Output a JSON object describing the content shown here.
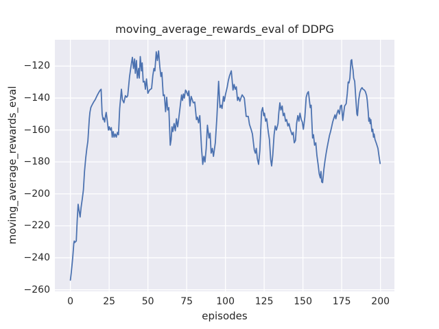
{
  "chart_data": {
    "type": "line",
    "title": "moving_average_rewards_eval of DDPG",
    "xlabel": "episodes",
    "ylabel": "moving_average_rewards_eval",
    "xlim": [
      -10,
      209
    ],
    "ylim": [
      -261,
      -103.5
    ],
    "xticks": [
      0,
      25,
      50,
      75,
      100,
      125,
      150,
      175,
      200
    ],
    "yticks": [
      -260,
      -240,
      -220,
      -200,
      -180,
      -160,
      -140,
      -120
    ],
    "grid": true,
    "legend": "none",
    "plot_bg_color": "#eaeaf2",
    "grid_color": "#ffffff",
    "text_color": "#262626",
    "series": [
      {
        "name": "moving_average_rewards_eval",
        "color": "#4c72b0",
        "points": [
          [
            0,
            -254
          ],
          [
            0.5,
            -250
          ],
          [
            1,
            -245
          ],
          [
            1.5,
            -240
          ],
          [
            2,
            -234
          ],
          [
            2.2,
            -231
          ],
          [
            2.5,
            -229.5
          ],
          [
            2.8,
            -230.5
          ],
          [
            3.8,
            -229.5
          ],
          [
            4.4,
            -217
          ],
          [
            5,
            -206.5
          ],
          [
            5.7,
            -211
          ],
          [
            6.3,
            -214.5
          ],
          [
            6.9,
            -208.5
          ],
          [
            7.7,
            -203
          ],
          [
            8.4,
            -197.5
          ],
          [
            9.1,
            -186
          ],
          [
            9.9,
            -177.5
          ],
          [
            10.6,
            -171.5
          ],
          [
            11.3,
            -167
          ],
          [
            12.2,
            -153
          ],
          [
            12.6,
            -149
          ],
          [
            13.2,
            -146
          ],
          [
            13.9,
            -144.5
          ],
          [
            15,
            -142.5
          ],
          [
            16,
            -141
          ],
          [
            17.2,
            -138.5
          ],
          [
            18.3,
            -136.5
          ],
          [
            19.3,
            -135
          ],
          [
            19.8,
            -134.5
          ],
          [
            20.5,
            -150
          ],
          [
            21.1,
            -153.5
          ],
          [
            21.5,
            -152.5
          ],
          [
            22.1,
            -155
          ],
          [
            22.7,
            -151
          ],
          [
            23.1,
            -149
          ],
          [
            23.7,
            -153.5
          ],
          [
            24.5,
            -160
          ],
          [
            25.1,
            -158
          ],
          [
            25.7,
            -160
          ],
          [
            26.4,
            -158.5
          ],
          [
            27,
            -164.5
          ],
          [
            27.6,
            -161
          ],
          [
            28.2,
            -164.5
          ],
          [
            28.9,
            -162.5
          ],
          [
            29.6,
            -164.5
          ],
          [
            30.4,
            -161.5
          ],
          [
            31,
            -163
          ],
          [
            31.8,
            -146.5
          ],
          [
            32.9,
            -134.5
          ],
          [
            33.6,
            -141
          ],
          [
            34.5,
            -143
          ],
          [
            35.5,
            -138.5
          ],
          [
            36.3,
            -139.5
          ],
          [
            37,
            -138.5
          ],
          [
            38.2,
            -126.5
          ],
          [
            39.2,
            -119.5
          ],
          [
            40,
            -114.5
          ],
          [
            40.7,
            -121.5
          ],
          [
            41.4,
            -115.5
          ],
          [
            41.9,
            -124.5
          ],
          [
            42.6,
            -116.5
          ],
          [
            43.2,
            -127.5
          ],
          [
            44,
            -121.5
          ],
          [
            44.4,
            -127.5
          ],
          [
            45.1,
            -114
          ],
          [
            45.9,
            -123
          ],
          [
            46.3,
            -118
          ],
          [
            47,
            -130
          ],
          [
            47.8,
            -129.5
          ],
          [
            48.4,
            -134.5
          ],
          [
            49.1,
            -128
          ],
          [
            50,
            -137
          ],
          [
            51,
            -135
          ],
          [
            52.4,
            -134
          ],
          [
            53.2,
            -126
          ],
          [
            53.9,
            -121.5
          ],
          [
            54.5,
            -123
          ],
          [
            55.4,
            -111
          ],
          [
            56.1,
            -116.5
          ],
          [
            56.9,
            -110.5
          ],
          [
            57.7,
            -120.5
          ],
          [
            58.4,
            -126.5
          ],
          [
            59,
            -124
          ],
          [
            59.9,
            -138.5
          ],
          [
            60.6,
            -138
          ],
          [
            61.4,
            -148.5
          ],
          [
            62.1,
            -139.5
          ],
          [
            62.8,
            -147.5
          ],
          [
            63.5,
            -146
          ],
          [
            64.4,
            -169.5
          ],
          [
            65,
            -166
          ],
          [
            65.5,
            -158
          ],
          [
            66.1,
            -161
          ],
          [
            66.9,
            -156
          ],
          [
            67.7,
            -160.5
          ],
          [
            68.4,
            -153
          ],
          [
            69.2,
            -158
          ],
          [
            69.8,
            -153.5
          ],
          [
            70.9,
            -144.5
          ],
          [
            71.7,
            -138
          ],
          [
            72.3,
            -141.5
          ],
          [
            72.9,
            -137.5
          ],
          [
            73.5,
            -140
          ],
          [
            74.3,
            -135
          ],
          [
            74.9,
            -136
          ],
          [
            75.8,
            -138.5
          ],
          [
            76.4,
            -135.5
          ],
          [
            77.1,
            -145
          ],
          [
            77.9,
            -139
          ],
          [
            78.6,
            -141
          ],
          [
            79.3,
            -143
          ],
          [
            80.2,
            -142.5
          ],
          [
            81.3,
            -153.5
          ],
          [
            82,
            -152
          ],
          [
            82.7,
            -155.5
          ],
          [
            83.5,
            -151
          ],
          [
            84.6,
            -171.5
          ],
          [
            85.4,
            -181.5
          ],
          [
            86.1,
            -176.5
          ],
          [
            86.8,
            -180
          ],
          [
            87.6,
            -171.5
          ],
          [
            88.4,
            -157
          ],
          [
            89.4,
            -165
          ],
          [
            90.1,
            -162
          ],
          [
            90.8,
            -174.5
          ],
          [
            91.6,
            -171.5
          ],
          [
            92.3,
            -176.5
          ],
          [
            93.5,
            -168
          ],
          [
            94.5,
            -152
          ],
          [
            95.6,
            -129.5
          ],
          [
            96.5,
            -146
          ],
          [
            97.2,
            -144.5
          ],
          [
            97.8,
            -146.5
          ],
          [
            98.7,
            -139
          ],
          [
            99.3,
            -142
          ],
          [
            100,
            -138
          ],
          [
            101.2,
            -133
          ],
          [
            101.9,
            -129
          ],
          [
            102.7,
            -126
          ],
          [
            103.8,
            -123
          ],
          [
            104.9,
            -135
          ],
          [
            105.6,
            -131.5
          ],
          [
            106.3,
            -134.5
          ],
          [
            107,
            -133
          ],
          [
            107.8,
            -141.5
          ],
          [
            108.5,
            -139.5
          ],
          [
            109.3,
            -142
          ],
          [
            110,
            -140
          ],
          [
            110.8,
            -138
          ],
          [
            111.5,
            -139
          ],
          [
            112.2,
            -140
          ],
          [
            113.4,
            -151.5
          ],
          [
            114.7,
            -151.5
          ],
          [
            115.5,
            -156.5
          ],
          [
            116.7,
            -160
          ],
          [
            117.4,
            -162.5
          ],
          [
            118.6,
            -172.5
          ],
          [
            119.3,
            -174.5
          ],
          [
            119.9,
            -171.5
          ],
          [
            120.6,
            -178
          ],
          [
            121.4,
            -181.5
          ],
          [
            122.2,
            -173
          ],
          [
            123.3,
            -148.5
          ],
          [
            124,
            -146
          ],
          [
            124.7,
            -151
          ],
          [
            125.2,
            -149.5
          ],
          [
            125.9,
            -154.5
          ],
          [
            126.6,
            -153
          ],
          [
            127.7,
            -161.5
          ],
          [
            128.4,
            -166
          ],
          [
            129.2,
            -178.5
          ],
          [
            129.8,
            -182.5
          ],
          [
            130.5,
            -176
          ],
          [
            131.4,
            -163
          ],
          [
            132.1,
            -157.5
          ],
          [
            132.9,
            -160
          ],
          [
            133.9,
            -156
          ],
          [
            134.4,
            -149.5
          ],
          [
            135.1,
            -143
          ],
          [
            135.8,
            -147.5
          ],
          [
            136.6,
            -145
          ],
          [
            137.3,
            -151
          ],
          [
            138,
            -149.5
          ],
          [
            138.8,
            -154.5
          ],
          [
            139.5,
            -153.5
          ],
          [
            140.3,
            -157.5
          ],
          [
            141,
            -156
          ],
          [
            141.8,
            -159.5
          ],
          [
            143,
            -163
          ],
          [
            143.7,
            -161.5
          ],
          [
            144.4,
            -168
          ],
          [
            145.2,
            -166.5
          ],
          [
            145.9,
            -156
          ],
          [
            146.7,
            -151
          ],
          [
            147.4,
            -154.5
          ],
          [
            148.1,
            -149.5
          ],
          [
            148.9,
            -153.5
          ],
          [
            149.6,
            -155
          ],
          [
            150.3,
            -159.5
          ],
          [
            151.2,
            -152
          ],
          [
            152.1,
            -139.5
          ],
          [
            152.8,
            -137
          ],
          [
            153.5,
            -136
          ],
          [
            154.7,
            -146
          ],
          [
            155.3,
            -144.5
          ],
          [
            156.2,
            -165
          ],
          [
            156.8,
            -163
          ],
          [
            157.5,
            -169.5
          ],
          [
            158.3,
            -168
          ],
          [
            159,
            -176
          ],
          [
            159.7,
            -181
          ],
          [
            160.5,
            -187.5
          ],
          [
            161.2,
            -190
          ],
          [
            161.6,
            -186
          ],
          [
            162.1,
            -192.5
          ],
          [
            162.7,
            -193
          ],
          [
            163.5,
            -184.5
          ],
          [
            164.2,
            -179.5
          ],
          [
            164.9,
            -175
          ],
          [
            165.6,
            -171
          ],
          [
            166.3,
            -167.5
          ],
          [
            167.1,
            -163.5
          ],
          [
            167.8,
            -161
          ],
          [
            168.5,
            -158
          ],
          [
            169.2,
            -155
          ],
          [
            170,
            -152.5
          ],
          [
            170.7,
            -150.5
          ],
          [
            171.2,
            -153
          ],
          [
            172,
            -149.5
          ],
          [
            172.7,
            -147.5
          ],
          [
            173.5,
            -150
          ],
          [
            174.2,
            -145
          ],
          [
            174.9,
            -144.5
          ],
          [
            175.7,
            -154
          ],
          [
            176.9,
            -145
          ],
          [
            177.9,
            -143.5
          ],
          [
            178.6,
            -137
          ],
          [
            179.2,
            -130
          ],
          [
            179.7,
            -130.5
          ],
          [
            180.3,
            -127.5
          ],
          [
            181,
            -116.5
          ],
          [
            181.5,
            -116
          ],
          [
            181.8,
            -119.5
          ],
          [
            182.3,
            -122.5
          ],
          [
            182.7,
            -127.5
          ],
          [
            183.4,
            -129.5
          ],
          [
            184.2,
            -141.5
          ],
          [
            184.8,
            -150
          ],
          [
            185.2,
            -151
          ],
          [
            185.9,
            -141.5
          ],
          [
            186.7,
            -136.5
          ],
          [
            187.4,
            -134.5
          ],
          [
            188.1,
            -133.5
          ],
          [
            188.8,
            -134.5
          ],
          [
            189.6,
            -135
          ],
          [
            190.3,
            -136
          ],
          [
            191.1,
            -138.5
          ],
          [
            191.5,
            -141.5
          ],
          [
            192.1,
            -148.5
          ],
          [
            192.5,
            -154.5
          ],
          [
            193,
            -152.5
          ],
          [
            193.4,
            -156
          ],
          [
            193.8,
            -153.5
          ],
          [
            194.5,
            -161
          ],
          [
            195,
            -159.5
          ],
          [
            195.5,
            -164.5
          ],
          [
            195.9,
            -162.5
          ],
          [
            196.5,
            -166
          ],
          [
            197.4,
            -168.5
          ],
          [
            198.4,
            -171.5
          ],
          [
            199.1,
            -176.5
          ],
          [
            199.8,
            -181
          ]
        ]
      }
    ]
  }
}
